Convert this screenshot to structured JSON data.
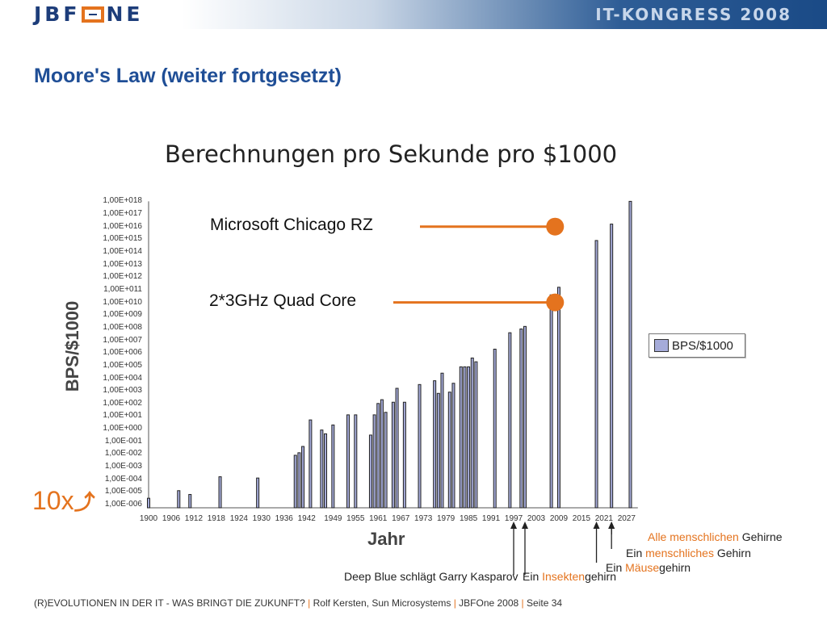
{
  "header": {
    "logo_text_left": "JBF",
    "logo_text_right": "NE",
    "logo_o_icon": "orange-square-o-icon",
    "congress_title": "IT-KONGRESS 2008"
  },
  "slide": {
    "title": "Moore's Law (weiter fortgesetzt)"
  },
  "chart_data": {
    "type": "bar",
    "title": "Berechnungen pro Sekunde pro $1000",
    "xlabel": "Jahr",
    "ylabel": "BPS/$1000",
    "scale": "log10",
    "ylim": [
      -6,
      18
    ],
    "xlim": [
      1900,
      2030
    ],
    "legend_position": "right",
    "series": [
      {
        "name": "BPS/$1000",
        "color": "#a5abd9",
        "points": [
          [
            1900,
            -5.5
          ],
          [
            1908,
            -4.9
          ],
          [
            1911,
            -5.2
          ],
          [
            1919,
            -3.8
          ],
          [
            1929,
            -3.9
          ],
          [
            1939,
            -2.1
          ],
          [
            1940,
            -1.9
          ],
          [
            1941,
            -1.4
          ],
          [
            1943,
            0.7
          ],
          [
            1946,
            -0.1
          ],
          [
            1947,
            -0.4
          ],
          [
            1949,
            0.3
          ],
          [
            1953,
            1.1
          ],
          [
            1955,
            1.1
          ],
          [
            1959,
            -0.5
          ],
          [
            1960,
            1.1
          ],
          [
            1961,
            2.0
          ],
          [
            1962,
            2.3
          ],
          [
            1963,
            1.3
          ],
          [
            1965,
            2.1
          ],
          [
            1966,
            3.2
          ],
          [
            1968,
            2.1
          ],
          [
            1972,
            3.5
          ],
          [
            1976,
            3.8
          ],
          [
            1977,
            2.8
          ],
          [
            1978,
            4.4
          ],
          [
            1980,
            2.9
          ],
          [
            1981,
            3.6
          ],
          [
            1983,
            4.9
          ],
          [
            1984,
            4.9
          ],
          [
            1985,
            4.9
          ],
          [
            1986,
            5.6
          ],
          [
            1987,
            5.3
          ],
          [
            1992,
            6.3
          ],
          [
            1996,
            7.6
          ],
          [
            1999,
            7.9
          ],
          [
            2000,
            8.1
          ],
          [
            2007,
            10.6
          ],
          [
            2009,
            11.2
          ],
          [
            2019,
            14.9
          ],
          [
            2023,
            16.2
          ],
          [
            2028,
            18.0
          ]
        ]
      }
    ],
    "y_tick_labels": [
      "1,00E-006",
      "1,00E-005",
      "1,00E-004",
      "1,00E-003",
      "1,00E-002",
      "1,00E-001",
      "1,00E+000",
      "1,00E+001",
      "1,00E+002",
      "1,00E+003",
      "1,00E+004",
      "1,00E+005",
      "1,00E+006",
      "1,00E+007",
      "1,00E+008",
      "1,00E+009",
      "1,00E+010",
      "1,00E+011",
      "1,00E+012",
      "1,00E+013",
      "1,00E+014",
      "1,00E+015",
      "1,00E+016",
      "1,00E+017",
      "1,00E+018"
    ],
    "x_tick_labels": [
      "1900",
      "1906",
      "1912",
      "1918",
      "1924",
      "1930",
      "1936",
      "1942",
      "1949",
      "1955",
      "1961",
      "1967",
      "1973",
      "1979",
      "1985",
      "1991",
      "1997",
      "2003",
      "2009",
      "2015",
      "2021",
      "2027"
    ],
    "x_tick_years": [
      1900,
      1906,
      1912,
      1918,
      1924,
      1930,
      1936,
      1942,
      1949,
      1955,
      1961,
      1967,
      1973,
      1979,
      1985,
      1991,
      1997,
      2003,
      2009,
      2015,
      2021,
      2027
    ],
    "annotations": [
      {
        "text": "Microsoft Chicago RZ",
        "year": 2008,
        "value": 16.0
      },
      {
        "text": "2*3GHz Quad Core",
        "year": 2008,
        "value": 10.0
      }
    ]
  },
  "scale_marker": {
    "text": "10x",
    "arrow": "curved-up-arrow-icon"
  },
  "milestones": [
    {
      "pre": "",
      "hl": "Alle menschlichen",
      "post": " Gehirne",
      "year": 2023
    },
    {
      "pre": "Ein ",
      "hl": "menschliches",
      "post": " Gehirn",
      "year": 2023
    },
    {
      "pre": "Ein ",
      "hl": "Mäuse",
      "post": "gehirn",
      "year": 2019
    },
    {
      "pre": "Deep Blue schlägt Garry Kasparov",
      "hl": "",
      "post": "",
      "year": 1997
    },
    {
      "pre": "Ein ",
      "hl": "Insekten",
      "post": "gehirn",
      "year": 2000
    }
  ],
  "footer": {
    "part1": "(R)EVOLUTIONEN IN DER IT - WAS BRINGT DIE ZUKUNFT?",
    "sep": "|",
    "part2": "Rolf Kersten, Sun Microsystems",
    "part3": "JBFOne 2008",
    "part4": "Seite 34"
  }
}
